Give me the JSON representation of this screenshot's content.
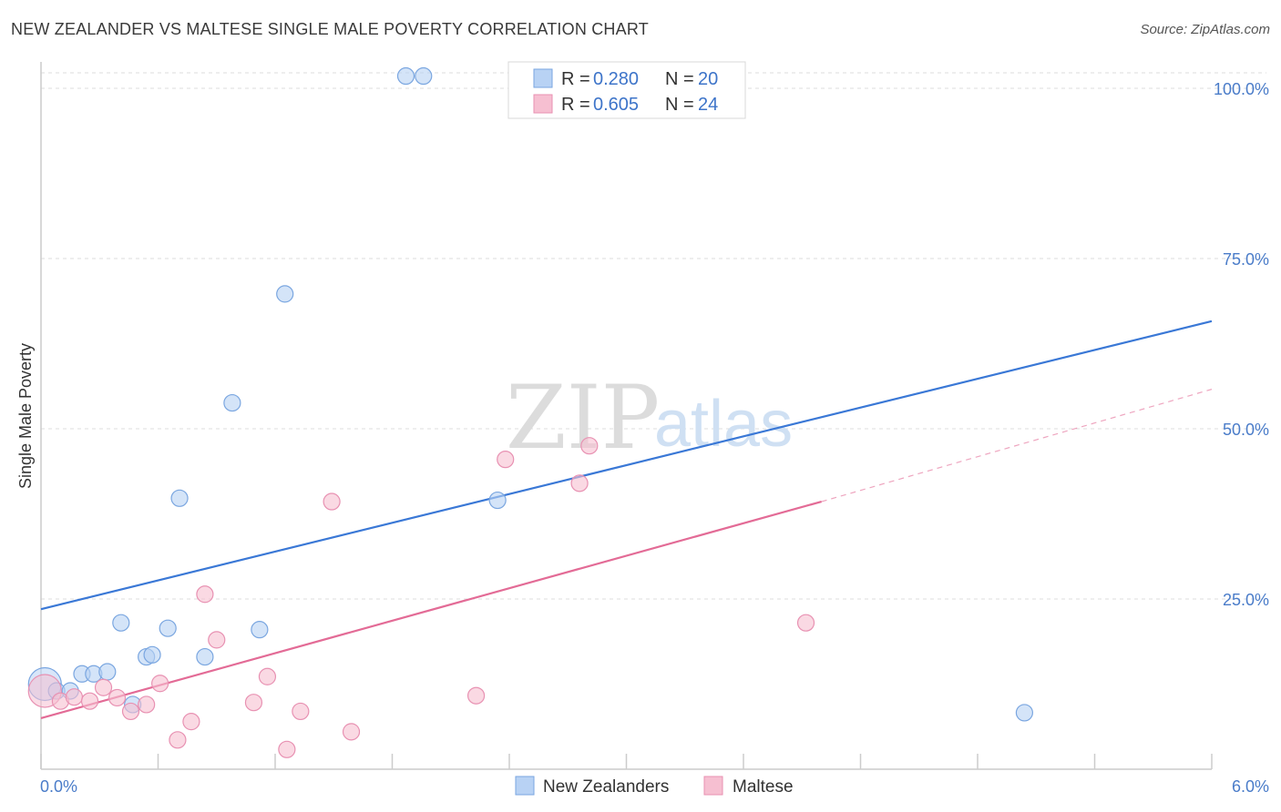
{
  "header": {
    "title": "NEW ZEALANDER VS MALTESE SINGLE MALE POVERTY CORRELATION CHART",
    "source": "Source: ZipAtlas.com"
  },
  "watermark": {
    "zip": "ZIP",
    "atlas": "atlas"
  },
  "colors": {
    "blue": "#3a78d6",
    "blue_fill": "#b8d2f4",
    "pink": "#e36b96",
    "pink_fill": "#f6bfd1",
    "grid": "#dcdcdc",
    "axis": "#cccccc",
    "tick_text": "#4a7cc9"
  },
  "chart_data": {
    "type": "scatter",
    "title": "NEW ZEALANDER VS MALTESE SINGLE MALE POVERTY CORRELATION CHART",
    "xlabel": "",
    "ylabel": "Single Male Poverty",
    "xlim": [
      0,
      6
    ],
    "ylim": [
      0,
      100
    ],
    "x_tick_labels": [
      "0.0%",
      "6.0%"
    ],
    "y_ticks": [
      25,
      50,
      75,
      100
    ],
    "y_tick_labels": [
      "25.0%",
      "50.0%",
      "75.0%",
      "100.0%"
    ],
    "legend_stats": [
      {
        "series": "New Zealanders",
        "r_label": "R =",
        "r": "0.280",
        "n_label": "N =",
        "n": "20"
      },
      {
        "series": "Maltese",
        "r_label": "R =",
        "r": "0.605",
        "n_label": "N =",
        "n": "24"
      }
    ],
    "series": [
      {
        "name": "New Zealanders",
        "color": "#3a78d6",
        "points": [
          [
            0.02,
            12.5
          ],
          [
            0.08,
            11.5
          ],
          [
            0.15,
            11.5
          ],
          [
            0.21,
            14.0
          ],
          [
            0.27,
            14.0
          ],
          [
            0.34,
            14.3
          ],
          [
            0.41,
            21.5
          ],
          [
            0.47,
            9.5
          ],
          [
            0.54,
            16.5
          ],
          [
            0.57,
            16.8
          ],
          [
            0.65,
            20.7
          ],
          [
            0.71,
            39.8
          ],
          [
            0.84,
            16.5
          ],
          [
            0.98,
            53.8
          ],
          [
            1.12,
            20.5
          ],
          [
            1.25,
            69.8
          ],
          [
            1.87,
            101.8
          ],
          [
            1.96,
            101.8
          ],
          [
            2.34,
            39.5
          ],
          [
            5.04,
            8.3
          ]
        ],
        "trend": {
          "x": [
            0,
            6
          ],
          "y": [
            23.5,
            65.8
          ]
        }
      },
      {
        "name": "Maltese",
        "color": "#e36b96",
        "points": [
          [
            0.02,
            11.5
          ],
          [
            0.1,
            10.0
          ],
          [
            0.17,
            10.6
          ],
          [
            0.25,
            10.0
          ],
          [
            0.32,
            12.0
          ],
          [
            0.39,
            10.5
          ],
          [
            0.46,
            8.5
          ],
          [
            0.54,
            9.5
          ],
          [
            0.61,
            12.6
          ],
          [
            0.7,
            4.3
          ],
          [
            0.77,
            7.0
          ],
          [
            0.84,
            25.7
          ],
          [
            0.9,
            19.0
          ],
          [
            1.09,
            9.8
          ],
          [
            1.16,
            13.6
          ],
          [
            1.26,
            2.9
          ],
          [
            1.33,
            8.5
          ],
          [
            1.49,
            39.3
          ],
          [
            1.59,
            5.5
          ],
          [
            2.23,
            10.8
          ],
          [
            2.38,
            45.5
          ],
          [
            2.76,
            42.0
          ],
          [
            2.81,
            47.5
          ],
          [
            3.92,
            21.5
          ]
        ],
        "trend": {
          "x": [
            0,
            4.0
          ],
          "y": [
            7.5,
            39.3
          ]
        },
        "trend_extension": {
          "x": [
            4.0,
            6
          ],
          "y": [
            39.3,
            55.8
          ]
        }
      }
    ]
  }
}
